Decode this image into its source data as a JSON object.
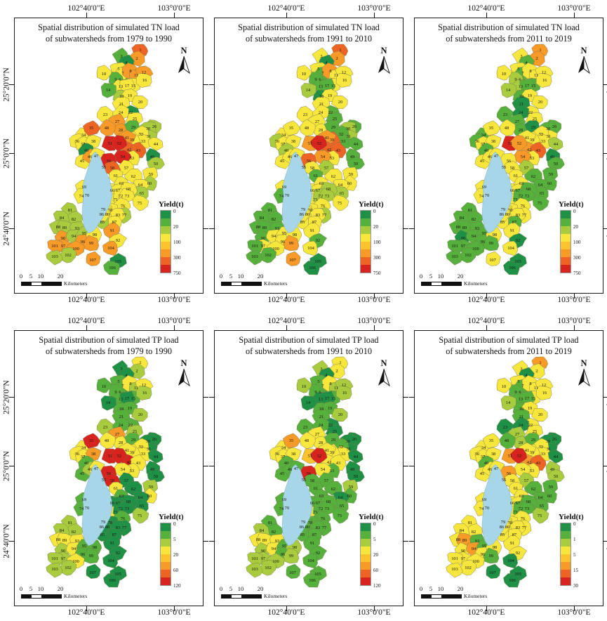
{
  "figure": {
    "axis": {
      "top_labels": [
        "102°40'0\"E",
        "103°0'0\"E"
      ],
      "side_labels": [
        "25°20'0\"N",
        "25°0'0\"N",
        "24°40'0\"N"
      ]
    },
    "north_label": "N",
    "scalebar": {
      "ticks": [
        "0",
        "5",
        "10",
        "20"
      ],
      "unit": "Kilometers"
    },
    "legend_title": "Yield(t)",
    "palette": [
      "#1f9147",
      "#56b03c",
      "#a8cc3d",
      "#f7e63c",
      "#fdc32e",
      "#f89a28",
      "#ee6425",
      "#d7241e"
    ],
    "lake_color": "#a7d6e8",
    "panels": [
      {
        "title_line1": "Spatial distribution of simulated TN load",
        "title_line2": "of subwatersheds from 1979 to 1990",
        "legend_values": [
          "0",
          "20",
          "100",
          "300",
          "750"
        ],
        "classes": "65103135135531333233303332551223336333305663353502773767363233332333333333332333223223322553222553555225015"
      },
      {
        "title_line1": "Spatial distribution of simulated TN load",
        "title_line2": "of subwatersheds from 1991 to 2010",
        "legend_values": [
          "0",
          "20",
          "100",
          "300",
          "750"
        ],
        "classes": "65303115133312331033313311331221133233625661333311573566233313332332313221332333113133311131133333531113005"
      },
      {
        "title_line1": "Spatial distribution of simulated TN load",
        "title_line2": "of subwatersheds from 2011 to 2019",
        "legend_values": [
          "0",
          "20",
          "100",
          "300",
          "750"
        ],
        "classes": "55313213233322131133031031110133313133313562333301753553231131311331333113133333113133111030111113111113003"
      },
      {
        "title_line1": "Spatial distribution of simulated TP load",
        "title_line2": "of subwatersheds from 1979 to 1990",
        "legend_values": [
          "0",
          "5",
          "20",
          "60",
          "120"
        ],
        "classes": "32001113112310120112112120531003337335313730123300773377072330100000113001210000220200033200331121132220000"
      },
      {
        "title_line1": "Spatial distribution of simulated TP load",
        "title_line2": "of subwatersheds from 1991 to 2010",
        "legend_values": [
          "0",
          "5",
          "20",
          "60",
          "120"
        ],
        "classes": "33201113122200120112101100331001335333313330111300471377112111101111113111111111111211133211331122222221111"
      },
      {
        "title_line1": "Spatial distribution of simulated TP load",
        "title_line2": "of subwatersheds from 2011 to 2019",
        "legend_values": [
          "0",
          "1",
          "5",
          "15",
          "30"
        ],
        "classes": "53303113133312331133130030221003333333313560333122573375231131311331333113233333333333335333151333133330000"
      }
    ],
    "subwatersheds": [
      [
        1,
        180,
        46
      ],
      [
        2,
        175,
        58
      ],
      [
        3,
        153,
        55
      ],
      [
        4,
        160,
        64
      ],
      [
        5,
        149,
        73
      ],
      [
        6,
        151,
        88
      ],
      [
        7,
        155,
        79
      ],
      [
        8,
        166,
        76
      ],
      [
        9,
        145,
        88
      ],
      [
        10,
        128,
        80
      ],
      [
        11,
        174,
        82
      ],
      [
        12,
        185,
        78
      ],
      [
        13,
        152,
        98
      ],
      [
        14,
        134,
        103
      ],
      [
        15,
        170,
        97
      ],
      [
        16,
        186,
        89
      ],
      [
        17,
        161,
        97
      ],
      [
        18,
        153,
        112
      ],
      [
        19,
        165,
        111
      ],
      [
        20,
        180,
        120
      ],
      [
        21,
        153,
        123
      ],
      [
        22,
        166,
        135
      ],
      [
        23,
        130,
        138
      ],
      [
        24,
        152,
        135
      ],
      [
        25,
        172,
        144
      ],
      [
        26,
        200,
        155
      ],
      [
        27,
        147,
        148
      ],
      [
        28,
        152,
        160
      ],
      [
        29,
        170,
        156
      ],
      [
        30,
        191,
        158
      ],
      [
        31,
        192,
        169
      ],
      [
        32,
        181,
        166
      ],
      [
        33,
        184,
        176
      ],
      [
        34,
        99,
        167
      ],
      [
        35,
        110,
        157
      ],
      [
        36,
        90,
        176
      ],
      [
        37,
        98,
        180
      ],
      [
        38,
        113,
        176
      ],
      [
        39,
        168,
        174
      ],
      [
        40,
        103,
        189
      ],
      [
        41,
        161,
        171
      ],
      [
        42,
        164,
        188
      ],
      [
        43,
        177,
        189
      ],
      [
        44,
        202,
        180
      ],
      [
        45,
        97,
        204
      ],
      [
        46,
        108,
        198
      ],
      [
        47,
        117,
        197
      ],
      [
        48,
        132,
        157
      ],
      [
        49,
        197,
        198
      ],
      [
        50,
        202,
        208
      ],
      [
        51,
        137,
        179
      ],
      [
        52,
        150,
        179
      ],
      [
        53,
        168,
        200
      ],
      [
        54,
        155,
        198
      ],
      [
        55,
        128,
        213
      ],
      [
        56,
        135,
        204
      ],
      [
        57,
        160,
        214
      ],
      [
        58,
        140,
        214
      ],
      [
        59,
        195,
        223
      ],
      [
        60,
        193,
        236
      ],
      [
        61,
        145,
        225
      ],
      [
        62,
        170,
        226
      ],
      [
        63,
        153,
        236
      ],
      [
        64,
        180,
        238
      ],
      [
        65,
        182,
        250
      ],
      [
        66,
        140,
        246
      ],
      [
        67,
        148,
        246
      ],
      [
        68,
        163,
        244
      ],
      [
        69,
        100,
        241
      ],
      [
        70,
        104,
        253
      ],
      [
        71,
        145,
        259
      ],
      [
        72,
        152,
        254
      ],
      [
        73,
        161,
        254
      ],
      [
        74,
        96,
        254
      ],
      [
        75,
        179,
        264
      ],
      [
        76,
        155,
        268
      ],
      [
        77,
        157,
        281
      ],
      [
        78,
        137,
        274
      ],
      [
        79,
        127,
        273
      ],
      [
        80,
        133,
        280
      ],
      [
        81,
        80,
        274
      ],
      [
        82,
        85,
        287
      ],
      [
        83,
        148,
        281
      ],
      [
        84,
        68,
        285
      ],
      [
        85,
        126,
        291
      ],
      [
        86,
        125,
        280
      ],
      [
        87,
        143,
        291
      ],
      [
        88,
        63,
        298
      ],
      [
        89,
        72,
        299
      ],
      [
        90,
        70,
        314
      ],
      [
        91,
        140,
        303
      ],
      [
        92,
        148,
        317
      ],
      [
        93,
        90,
        300
      ],
      [
        94,
        85,
        311
      ],
      [
        95,
        100,
        307
      ],
      [
        96,
        98,
        319
      ],
      [
        97,
        70,
        325
      ],
      [
        98,
        115,
        309
      ],
      [
        99,
        110,
        321
      ],
      [
        100,
        88,
        329
      ],
      [
        101,
        58,
        325
      ],
      [
        102,
        77,
        338
      ],
      [
        103,
        58,
        340
      ],
      [
        104,
        138,
        328
      ],
      [
        105,
        148,
        347
      ],
      [
        106,
        140,
        356
      ],
      [
        107,
        112,
        345
      ]
    ],
    "lake_points": "116,191 123,199 127,210 131,220 136,230 139,242 140,254 137,266 132,276 126,286 119,296 113,304 106,307 101,300 98,289 97,277 98,264 99,252 98,240 101,228 105,216 109,204 112,195"
  }
}
